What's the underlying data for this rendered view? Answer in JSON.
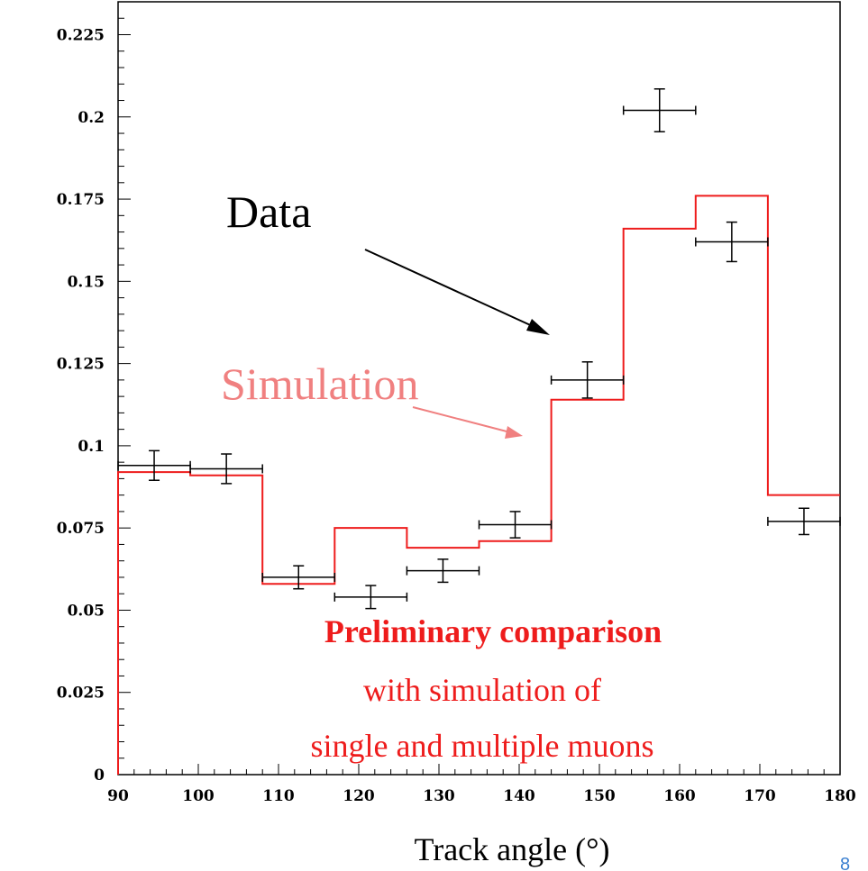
{
  "chart_data": {
    "type": "line",
    "xlabel": "Track angle  (°)",
    "xlim": [
      90,
      180
    ],
    "ylim": [
      0,
      0.235
    ],
    "x_ticks": [
      "90",
      "100",
      "110",
      "120",
      "130",
      "140",
      "150",
      "160",
      "170",
      "180"
    ],
    "y_ticks": [
      "0",
      "0.025",
      "0.05",
      "0.075",
      "0.1",
      "0.125",
      "0.15",
      "0.175",
      "0.2",
      "0.225"
    ],
    "series": [
      {
        "name": "Data",
        "style": "points with error bars",
        "color": "#000000",
        "points": [
          {
            "x": 94.5,
            "xerr": 4.5,
            "y": 0.094,
            "yerr": 0.0045
          },
          {
            "x": 103.5,
            "xerr": 4.5,
            "y": 0.093,
            "yerr": 0.0045
          },
          {
            "x": 112.5,
            "xerr": 4.5,
            "y": 0.06,
            "yerr": 0.0035
          },
          {
            "x": 121.5,
            "xerr": 4.5,
            "y": 0.054,
            "yerr": 0.0035
          },
          {
            "x": 130.5,
            "xerr": 4.5,
            "y": 0.062,
            "yerr": 0.0035
          },
          {
            "x": 139.5,
            "xerr": 4.5,
            "y": 0.076,
            "yerr": 0.004
          },
          {
            "x": 148.5,
            "xerr": 4.5,
            "y": 0.12,
            "yerr": 0.0055
          },
          {
            "x": 157.5,
            "xerr": 4.5,
            "y": 0.202,
            "yerr": 0.0065
          },
          {
            "x": 166.5,
            "xerr": 4.5,
            "y": 0.162,
            "yerr": 0.006
          },
          {
            "x": 175.5,
            "xerr": 4.5,
            "y": 0.077,
            "yerr": 0.004
          }
        ]
      },
      {
        "name": "Simulation",
        "style": "step histogram",
        "color": "#ee1c1c",
        "bin_edges": [
          90,
          99,
          108,
          117,
          126,
          135,
          144,
          153,
          162,
          171,
          180
        ],
        "values": [
          0.092,
          0.091,
          0.058,
          0.075,
          0.069,
          0.071,
          0.114,
          0.166,
          0.176,
          0.085
        ]
      }
    ],
    "annotations": {
      "data_label": "Data",
      "simulation_label": "Simulation",
      "note_bold": "Preliminary comparison",
      "note_line2": "with simulation of",
      "note_line3": "single and multiple muons"
    }
  },
  "page_number": "8"
}
